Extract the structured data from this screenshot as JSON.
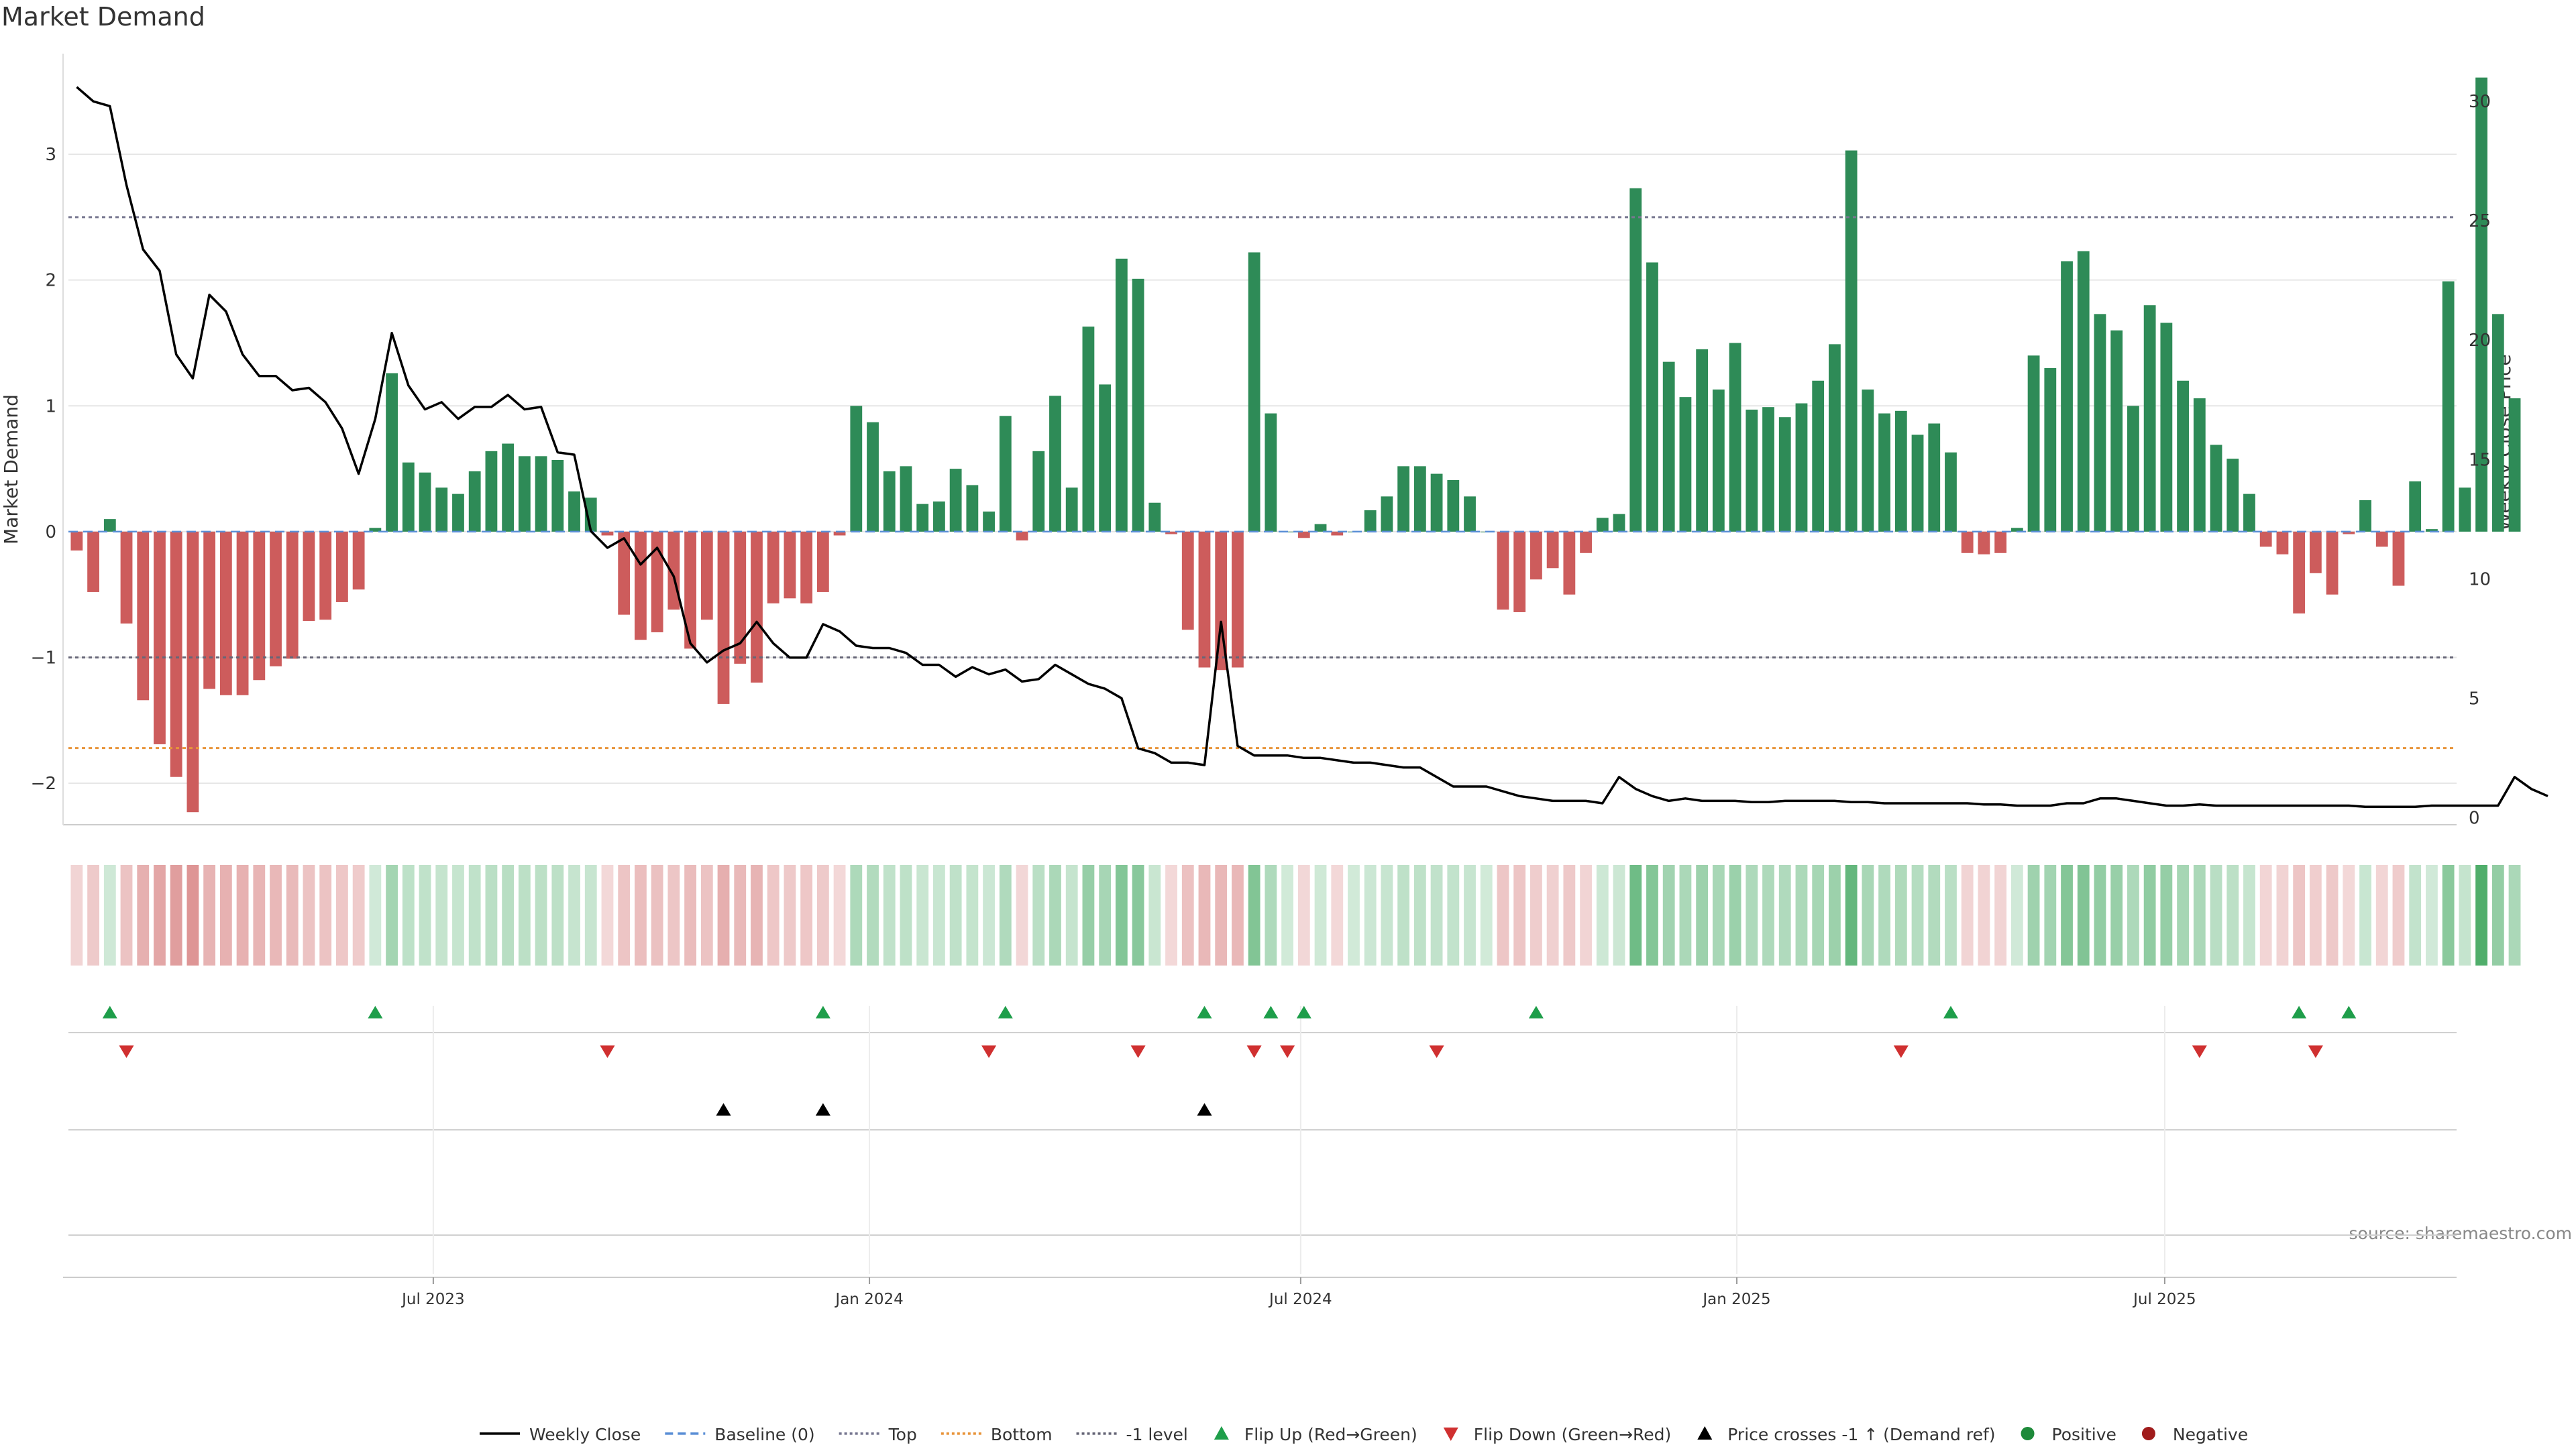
{
  "chart_data": {
    "type": "bar",
    "title": "Market Demand",
    "ylabel": "Market Demand",
    "y2label": "Weekly Close Price",
    "ylim": [
      -2.33,
      3.8
    ],
    "y2lim": [
      -0.3,
      32.0
    ],
    "yticks": [
      "3",
      "2",
      "1",
      "0",
      "−1",
      "−2"
    ],
    "yticks_values": [
      3,
      2,
      1,
      0,
      -1,
      -2
    ],
    "y2ticks": [
      "30",
      "25",
      "20",
      "15",
      "10",
      "5",
      "0"
    ],
    "y2ticks_values": [
      30,
      25,
      20,
      15,
      10,
      5,
      0
    ],
    "x_start_date": "2023-01-02",
    "weeks": 144,
    "x_ticks": [
      {
        "label": "Jul 2023",
        "week": 22
      },
      {
        "label": "Jan 2024",
        "week": 48.3
      },
      {
        "label": "Jul 2024",
        "week": 74.3
      },
      {
        "label": "Jan 2025",
        "week": 100.6
      },
      {
        "label": "Jul 2025",
        "week": 126.4
      }
    ],
    "demand": [
      -0.15,
      -0.48,
      0.1,
      -0.73,
      -1.34,
      -1.69,
      -1.95,
      -2.23,
      -1.25,
      -1.3,
      -1.3,
      -1.18,
      -1.07,
      -1.01,
      -0.71,
      -0.7,
      -0.56,
      -0.46,
      0.03,
      1.26,
      0.55,
      0.47,
      0.35,
      0.3,
      0.48,
      0.64,
      0.7,
      0.6,
      0.6,
      0.57,
      0.32,
      0.27,
      -0.03,
      -0.66,
      -0.86,
      -0.8,
      -0.62,
      -0.93,
      -0.7,
      -1.37,
      -1.05,
      -1.2,
      -0.57,
      -0.53,
      -0.57,
      -0.48,
      -0.03,
      1.0,
      0.87,
      0.48,
      0.52,
      0.22,
      0.24,
      0.5,
      0.37,
      0.16,
      0.92,
      -0.07,
      0.64,
      1.08,
      0.35,
      1.63,
      1.17,
      2.17,
      2.01,
      0.23,
      -0.02,
      -0.78,
      -1.08,
      -1.1,
      -1.08,
      2.22,
      0.94,
      0.0,
      -0.05,
      0.06,
      -0.03,
      0.0,
      0.17,
      0.28,
      0.52,
      0.52,
      0.46,
      0.41,
      0.28,
      0.0,
      -0.62,
      -0.64,
      -0.38,
      -0.29,
      -0.5,
      -0.17,
      0.11,
      0.14,
      2.73,
      2.14,
      1.35,
      1.07,
      1.45,
      1.13,
      1.5,
      0.97,
      0.99,
      0.91,
      1.02,
      1.2,
      1.49,
      3.03,
      1.13,
      0.94,
      0.96,
      0.77,
      0.86,
      0.63,
      -0.17,
      -0.18,
      -0.17,
      0.03,
      1.4,
      1.3,
      2.15,
      2.23,
      1.73,
      1.6,
      1.0,
      1.8,
      1.66,
      1.2,
      1.06,
      0.69,
      0.58,
      0.3,
      -0.12,
      -0.18,
      -0.65,
      -0.33,
      -0.5,
      -0.02,
      0.25,
      -0.12,
      -0.43,
      0.4,
      0.02,
      1.99,
      0.35,
      3.61,
      1.73,
      1.06
    ],
    "close": [
      30.6,
      30.0,
      29.8,
      26.5,
      23.8,
      22.9,
      19.4,
      18.4,
      21.9,
      21.2,
      19.4,
      18.5,
      18.5,
      17.9,
      18.0,
      17.4,
      16.3,
      14.4,
      16.7,
      20.3,
      18.1,
      17.1,
      17.4,
      16.7,
      17.2,
      17.2,
      17.7,
      17.1,
      17.2,
      15.3,
      15.2,
      12.0,
      11.3,
      11.7,
      10.6,
      11.3,
      10.1,
      7.3,
      6.5,
      7.0,
      7.3,
      8.2,
      7.3,
      6.7,
      6.7,
      8.1,
      7.8,
      7.2,
      7.1,
      7.1,
      6.9,
      6.4,
      6.4,
      5.9,
      6.3,
      6.0,
      6.2,
      5.7,
      5.8,
      6.4,
      6.0,
      5.6,
      5.4,
      5.0,
      2.9,
      2.7,
      2.3,
      2.3,
      2.2,
      8.2,
      3.0,
      2.6,
      2.6,
      2.6,
      2.5,
      2.5,
      2.4,
      2.3,
      2.3,
      2.2,
      2.1,
      2.1,
      1.7,
      1.3,
      1.3,
      1.3,
      1.1,
      0.9,
      0.8,
      0.7,
      0.7,
      0.7,
      0.6,
      1.7,
      1.2,
      0.9,
      0.7,
      0.8,
      0.7,
      0.7,
      0.7,
      0.65,
      0.65,
      0.7,
      0.7,
      0.7,
      0.7,
      0.65,
      0.65,
      0.6,
      0.6,
      0.6,
      0.6,
      0.6,
      0.6,
      0.55,
      0.55,
      0.5,
      0.5,
      0.5,
      0.6,
      0.6,
      0.8,
      0.8,
      0.7,
      0.6,
      0.5,
      0.5,
      0.55,
      0.5,
      0.5,
      0.5,
      0.5,
      0.5,
      0.5,
      0.5,
      0.5,
      0.5,
      0.45,
      0.45,
      0.45,
      0.45,
      0.5,
      0.5,
      0.5,
      0.5,
      0.5,
      1.7,
      1.2,
      0.9
    ],
    "ref_lines": [
      {
        "name": "Top",
        "value": 2.5,
        "color": "#777790",
        "style": "dotted"
      },
      {
        "name": "-1 level",
        "value": -1.0,
        "color": "#666677",
        "style": "dotted"
      },
      {
        "name": "Bottom",
        "value": -1.72,
        "color": "#e8943a",
        "style": "dotted"
      },
      {
        "name": "Baseline (0)",
        "value": 0.0,
        "color": "#5b8fd6",
        "style": "dashed"
      }
    ],
    "flip_up_weeks": [
      2,
      18,
      45,
      56,
      68,
      72,
      74,
      88,
      113,
      134,
      137
    ],
    "flip_down_weeks": [
      3,
      32,
      55,
      64,
      71,
      73,
      82,
      110,
      128,
      135
    ],
    "price_cross_weeks": [
      39,
      45,
      68
    ],
    "legend": [
      {
        "label": "Weekly Close",
        "kind": "line-solid",
        "color": "#000000"
      },
      {
        "label": "Baseline (0)",
        "kind": "line-dashed",
        "color": "#5b8fd6"
      },
      {
        "label": "Top",
        "kind": "line-dotted",
        "color": "#777790"
      },
      {
        "label": "Bottom",
        "kind": "line-dotted",
        "color": "#e8943a"
      },
      {
        "label": "-1 level",
        "kind": "line-dotted",
        "color": "#666677"
      },
      {
        "label": "Flip Up (Red→Green)",
        "kind": "tri-up",
        "color": "#1e9e4a"
      },
      {
        "label": "Flip Down (Green→Red)",
        "kind": "tri-down",
        "color": "#d03030"
      },
      {
        "label": "Price crosses -1 ↑ (Demand ref)",
        "kind": "tri-up",
        "color": "#000000"
      },
      {
        "label": "Positive",
        "kind": "dot",
        "color": "#1e8a3a"
      },
      {
        "label": "Negative",
        "kind": "dot",
        "color": "#a01c1c"
      }
    ],
    "source_label": "source: sharemaestro.com",
    "colors": {
      "positive_bar": "#2e8b57",
      "negative_bar": "#cd5c5c",
      "heat_positive": "#2e9e4f",
      "heat_negative": "#c85050",
      "price_line": "#000000",
      "grid": "#e6e6e6",
      "axis_text": "#333333"
    }
  }
}
